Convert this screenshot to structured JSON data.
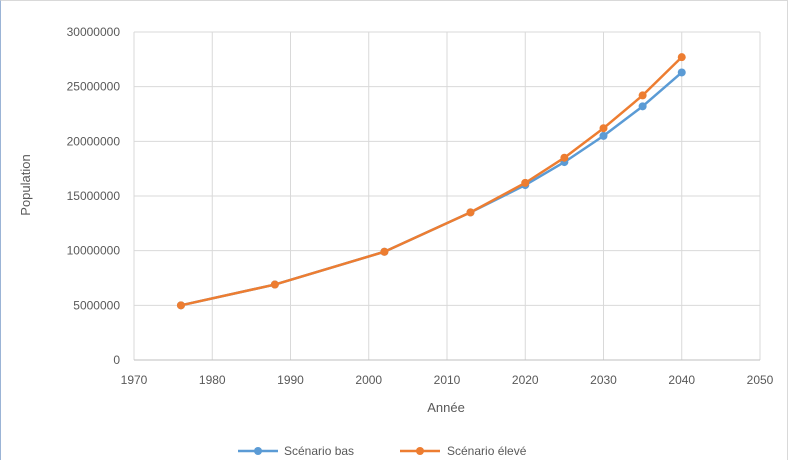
{
  "chart_data": {
    "type": "line",
    "title": "",
    "xlabel": "Année",
    "ylabel": "Population",
    "xlim": [
      1970,
      2050
    ],
    "ylim": [
      0,
      30000000
    ],
    "x_ticks": [
      "1970",
      "1980",
      "1990",
      "2000",
      "2010",
      "2020",
      "2030",
      "2040",
      "2050"
    ],
    "y_ticks": [
      "0",
      "5000000",
      "10000000",
      "15000000",
      "20000000",
      "25000000",
      "30000000"
    ],
    "grid": true,
    "legend_position": "bottom",
    "series": [
      {
        "name": "Scénario bas",
        "color": "#5b9bd5",
        "x": [
          1976,
          1988,
          2002,
          2013,
          2020,
          2025,
          2030,
          2035,
          2040
        ],
        "values": [
          5000000,
          6900000,
          9900000,
          13500000,
          16000000,
          18100000,
          20500000,
          23200000,
          26300000
        ]
      },
      {
        "name": "Scénario élevé",
        "color": "#ed7d31",
        "x": [
          1976,
          1988,
          2002,
          2013,
          2020,
          2025,
          2030,
          2035,
          2040
        ],
        "values": [
          5000000,
          6900000,
          9900000,
          13500000,
          16200000,
          18500000,
          21200000,
          24200000,
          27700000
        ]
      }
    ]
  }
}
